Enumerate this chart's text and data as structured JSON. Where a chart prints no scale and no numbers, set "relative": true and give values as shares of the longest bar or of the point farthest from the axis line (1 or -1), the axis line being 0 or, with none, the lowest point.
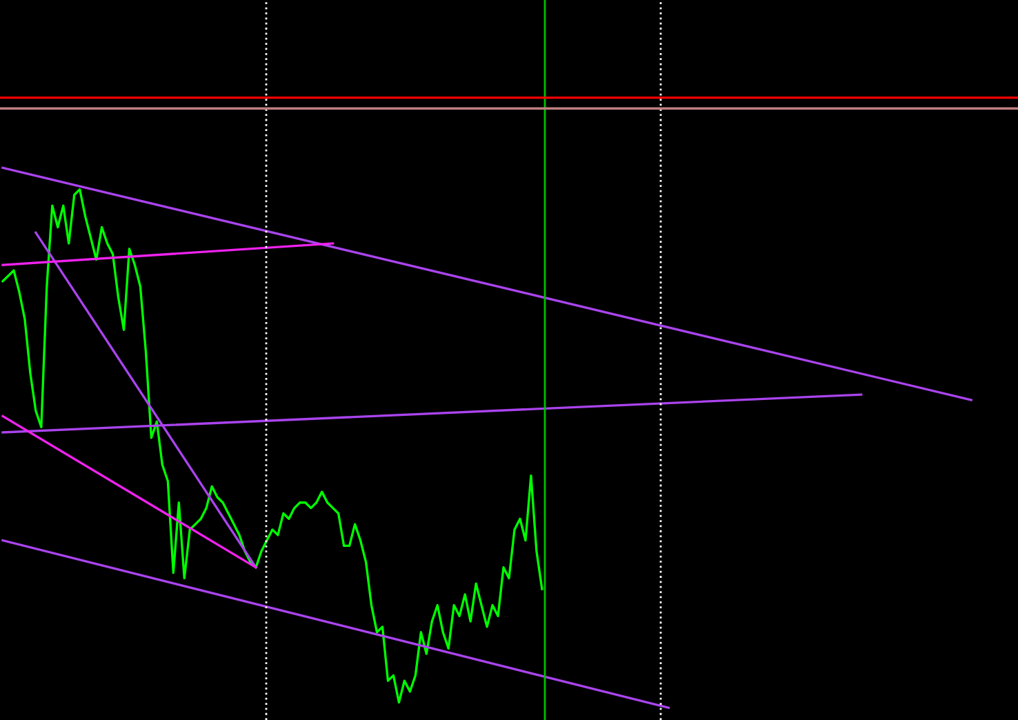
{
  "chart_data": {
    "type": "line",
    "relative": true,
    "marker": "none",
    "line_style": "solid",
    "categories": [
      null,
      null,
      null,
      null,
      null,
      null,
      null,
      null,
      null,
      null,
      null,
      null,
      null,
      null,
      null,
      null,
      null,
      null,
      null,
      null,
      null,
      null,
      null,
      null,
      null,
      null,
      null,
      null,
      null,
      null,
      null,
      null,
      null,
      null,
      null,
      null,
      null,
      null,
      null,
      null,
      null,
      null,
      null,
      null,
      null,
      null,
      null,
      null,
      null,
      null,
      null,
      null,
      null,
      null,
      null,
      null,
      null,
      null,
      null,
      null,
      null,
      null,
      null,
      null,
      null,
      null,
      null,
      null,
      null,
      null,
      null,
      null,
      null,
      null,
      null,
      null,
      null,
      null,
      null,
      null,
      null,
      null,
      null,
      null,
      null,
      null,
      null,
      null,
      null,
      null,
      null,
      null,
      null,
      null,
      null,
      null,
      null,
      null,
      null,
      null,
      null,
      null,
      null,
      null,
      null,
      null,
      null,
      null,
      null,
      null,
      null,
      null,
      null,
      null,
      null,
      null,
      null,
      null,
      null,
      null,
      null,
      null,
      null,
      null,
      null,
      null,
      null,
      null,
      null,
      null,
      null,
      null,
      null,
      null,
      null,
      null,
      null,
      null,
      null,
      null,
      null,
      null,
      null,
      null,
      null,
      null,
      null,
      null,
      null,
      null,
      null,
      null,
      null,
      null,
      null,
      null,
      null,
      null,
      null,
      null,
      null,
      null,
      null,
      null,
      null,
      null,
      null,
      null,
      null,
      null,
      null,
      null,
      null,
      null,
      null,
      null,
      null,
      null,
      null,
      null,
      null,
      null,
      null,
      null,
      null
    ],
    "series": [
      {
        "color": "#00ff00",
        "values": [
          0.79,
          0.8,
          0.81,
          0.77,
          0.72,
          0.62,
          0.55,
          0.52,
          0.78,
          0.93,
          0.89,
          0.93,
          0.86,
          0.95,
          0.96,
          0.91,
          0.87,
          0.83,
          0.89,
          0.86,
          0.84,
          0.76,
          0.7,
          0.85,
          0.82,
          0.78,
          0.66,
          0.5,
          0.53,
          0.45,
          0.42,
          0.25,
          0.38,
          0.24,
          0.33,
          0.34,
          0.35,
          0.37,
          0.41,
          0.39,
          0.38,
          0.36,
          0.34,
          0.32,
          0.29,
          0.27,
          0.26,
          0.29,
          0.31,
          0.33,
          0.32,
          0.36,
          0.35,
          0.37,
          0.38,
          0.38,
          0.37,
          0.38,
          0.4,
          0.38,
          0.37,
          0.36,
          0.3,
          0.3,
          0.34,
          0.31,
          0.27,
          0.19,
          0.14,
          0.15,
          0.05,
          0.06,
          0.01,
          0.05,
          0.03,
          0.06,
          0.14,
          0.1,
          0.16,
          0.19,
          0.14,
          0.11,
          0.19,
          0.17,
          0.21,
          0.16,
          0.23,
          0.19,
          0.15,
          0.19,
          0.17,
          0.26,
          0.24,
          0.33,
          0.35,
          0.31,
          0.43,
          0.29,
          0.22,
          null,
          null,
          null,
          null,
          null,
          null,
          null,
          null,
          null,
          null,
          null,
          null,
          null,
          null,
          null,
          null,
          null,
          null,
          null,
          null,
          null,
          null,
          null,
          null,
          null,
          null,
          null,
          null,
          null,
          null,
          null,
          null,
          null,
          null,
          null,
          null,
          null,
          null,
          null,
          null,
          null,
          null,
          null,
          null,
          null,
          null,
          null,
          null,
          null,
          null,
          null,
          null,
          null,
          null,
          null,
          null,
          null,
          null,
          null,
          null,
          null,
          null,
          null,
          null,
          null,
          null,
          null,
          null,
          null,
          null,
          null,
          null,
          null,
          null,
          null,
          null,
          null,
          null,
          null,
          null,
          null,
          null,
          null,
          null,
          null,
          null
        ]
      },
      {
        "color": "#aa44ee",
        "values": [
          1.0,
          null,
          null,
          null,
          null,
          null,
          null,
          null,
          null,
          null,
          null,
          null,
          null,
          null,
          null,
          null,
          null,
          null,
          null,
          null,
          null,
          null,
          null,
          null,
          null,
          null,
          null,
          null,
          null,
          null,
          null,
          null,
          null,
          null,
          null,
          null,
          null,
          null,
          null,
          null,
          null,
          null,
          null,
          null,
          null,
          null,
          null,
          null,
          null,
          null,
          null,
          null,
          null,
          null,
          null,
          null,
          null,
          null,
          null,
          null,
          null,
          null,
          null,
          null,
          null,
          null,
          null,
          null,
          null,
          null,
          null,
          null,
          null,
          null,
          null,
          null,
          null,
          null,
          null,
          null,
          null,
          null,
          null,
          null,
          null,
          null,
          null,
          null,
          null,
          null,
          null,
          null,
          null,
          null,
          null,
          null,
          null,
          null,
          null,
          null,
          null,
          null,
          null,
          null,
          null,
          null,
          null,
          null,
          null,
          null,
          null,
          null,
          null,
          null,
          null,
          null,
          null,
          null,
          null,
          null,
          null,
          null,
          null,
          null,
          null,
          null,
          null,
          null,
          null,
          null,
          null,
          null,
          null,
          null,
          null,
          null,
          null,
          null,
          null,
          null,
          null,
          null,
          null,
          null,
          null,
          null,
          null,
          null,
          null,
          null,
          null,
          null,
          null,
          null,
          null,
          null,
          null,
          null,
          null,
          null,
          null,
          null,
          null,
          null,
          null,
          null,
          null,
          null,
          null,
          null,
          null,
          null,
          null,
          null,
          null,
          null,
          0.57,
          null,
          null,
          null,
          null,
          null,
          null,
          null,
          null
        ]
      },
      {
        "color": "#aa44ee",
        "values": [
          0.31,
          null,
          null,
          null,
          null,
          null,
          null,
          null,
          null,
          null,
          null,
          null,
          null,
          null,
          null,
          null,
          null,
          null,
          null,
          null,
          null,
          null,
          null,
          null,
          null,
          null,
          null,
          null,
          null,
          null,
          null,
          null,
          null,
          null,
          null,
          null,
          null,
          null,
          null,
          null,
          null,
          null,
          null,
          null,
          null,
          null,
          null,
          null,
          null,
          null,
          null,
          null,
          null,
          null,
          null,
          null,
          null,
          null,
          null,
          null,
          null,
          null,
          null,
          null,
          null,
          null,
          null,
          null,
          null,
          null,
          null,
          null,
          null,
          null,
          null,
          null,
          null,
          null,
          null,
          null,
          null,
          null,
          null,
          null,
          null,
          null,
          null,
          null,
          null,
          null,
          null,
          null,
          null,
          null,
          null,
          null,
          null,
          null,
          null,
          null,
          null,
          null,
          null,
          null,
          null,
          null,
          null,
          null,
          null,
          null,
          null,
          null,
          null,
          null,
          null,
          null,
          null,
          null,
          null,
          null,
          null,
          0,
          null,
          null,
          null,
          null,
          null,
          null,
          null,
          null,
          null,
          null,
          null,
          null,
          null,
          null,
          null,
          null,
          null,
          null,
          null,
          null,
          null,
          null,
          null,
          null,
          null,
          null,
          null,
          null,
          null,
          null,
          null,
          null,
          null,
          null,
          null,
          null,
          null,
          null,
          null,
          null,
          null,
          null,
          null,
          null,
          null,
          null,
          null,
          null,
          null,
          null,
          null,
          null,
          null,
          null,
          null,
          null,
          null,
          null,
          null,
          null,
          null,
          null,
          null
        ]
      },
      {
        "color": "#aa44ee",
        "values": [
          0.51,
          null,
          null,
          null,
          null,
          null,
          null,
          null,
          null,
          null,
          null,
          null,
          null,
          null,
          null,
          null,
          null,
          null,
          null,
          null,
          null,
          null,
          null,
          null,
          null,
          null,
          null,
          null,
          null,
          null,
          null,
          null,
          null,
          null,
          null,
          null,
          null,
          null,
          null,
          null,
          null,
          null,
          null,
          null,
          null,
          null,
          null,
          null,
          null,
          null,
          null,
          null,
          null,
          null,
          null,
          null,
          null,
          null,
          null,
          null,
          null,
          null,
          null,
          null,
          null,
          null,
          null,
          null,
          null,
          null,
          null,
          null,
          null,
          null,
          null,
          null,
          null,
          null,
          null,
          null,
          null,
          null,
          null,
          null,
          null,
          null,
          null,
          null,
          null,
          null,
          null,
          null,
          null,
          null,
          null,
          null,
          null,
          null,
          null,
          null,
          null,
          null,
          null,
          null,
          null,
          null,
          null,
          null,
          null,
          null,
          null,
          null,
          null,
          null,
          null,
          null,
          null,
          null,
          null,
          null,
          null,
          null,
          null,
          null,
          null,
          null,
          null,
          null,
          null,
          null,
          null,
          null,
          null,
          null,
          null,
          null,
          null,
          null,
          null,
          null,
          null,
          null,
          null,
          null,
          null,
          null,
          null,
          null,
          null,
          null,
          null,
          null,
          null,
          null,
          null,
          null,
          0.58,
          null,
          null,
          null,
          null,
          null,
          null,
          null,
          null,
          null,
          null,
          null,
          null,
          null,
          null,
          null,
          null,
          null,
          null,
          null,
          null,
          null,
          null,
          null,
          null,
          null,
          null,
          null,
          null
        ]
      },
      {
        "color": "#aa44ee",
        "values": [
          null,
          null,
          null,
          null,
          null,
          null,
          0.88,
          null,
          null,
          null,
          null,
          null,
          null,
          null,
          null,
          null,
          null,
          null,
          null,
          null,
          null,
          null,
          null,
          null,
          null,
          null,
          null,
          null,
          null,
          null,
          null,
          null,
          null,
          null,
          null,
          null,
          null,
          null,
          null,
          null,
          null,
          null,
          null,
          null,
          null,
          null,
          0.26,
          null,
          null,
          null,
          null,
          null,
          null,
          null,
          null,
          null,
          null,
          null,
          null,
          null,
          null,
          null,
          null,
          null,
          null,
          null,
          null,
          null,
          null,
          null,
          null,
          null,
          null,
          null,
          null,
          null,
          null,
          null,
          null,
          null,
          null,
          null,
          null,
          null,
          null,
          null,
          null,
          null,
          null,
          null,
          null,
          null,
          null,
          null,
          null,
          null,
          null,
          null,
          null,
          null,
          null,
          null,
          null,
          null,
          null,
          null,
          null,
          null,
          null,
          null,
          null,
          null,
          null,
          null,
          null,
          null,
          null,
          null,
          null,
          null,
          null,
          null,
          null,
          null,
          null,
          null,
          null,
          null,
          null,
          null,
          null,
          null,
          null,
          null,
          null,
          null,
          null,
          null,
          null,
          null,
          null,
          null,
          null,
          null,
          null,
          null,
          null,
          null,
          null,
          null,
          null,
          null,
          null,
          null,
          null,
          null,
          null,
          null,
          null,
          null,
          null,
          null,
          null,
          null,
          null,
          null,
          null,
          null,
          null,
          null,
          null,
          null,
          null,
          null,
          null,
          null,
          null,
          null,
          null,
          null,
          null,
          null,
          null,
          null,
          null
        ]
      },
      {
        "color": "#ee22ee",
        "values": [
          0.82,
          null,
          null,
          null,
          null,
          null,
          null,
          null,
          null,
          null,
          null,
          null,
          null,
          null,
          null,
          null,
          null,
          null,
          null,
          null,
          null,
          null,
          null,
          null,
          null,
          null,
          null,
          null,
          null,
          null,
          null,
          null,
          null,
          null,
          null,
          null,
          null,
          null,
          null,
          null,
          null,
          null,
          null,
          null,
          null,
          null,
          null,
          null,
          null,
          null,
          null,
          null,
          null,
          null,
          null,
          null,
          null,
          null,
          null,
          null,
          0.86,
          null,
          null,
          null,
          null,
          null,
          null,
          null,
          null,
          null,
          null,
          null,
          null,
          null,
          null,
          null,
          null,
          null,
          null,
          null,
          null,
          null,
          null,
          null,
          null,
          null,
          null,
          null,
          null,
          null,
          null,
          null,
          null,
          null,
          null,
          null,
          null,
          null,
          null,
          null,
          null,
          null,
          null,
          null,
          null,
          null,
          null,
          null,
          null,
          null,
          null,
          null,
          null,
          null,
          null,
          null,
          null,
          null,
          null,
          null,
          null,
          null,
          null,
          null,
          null,
          null,
          null,
          null,
          null,
          null,
          null,
          null,
          null,
          null,
          null,
          null,
          null,
          null,
          null,
          null,
          null,
          null,
          null,
          null,
          null,
          null,
          null,
          null,
          null,
          null,
          null,
          null,
          null,
          null,
          null,
          null,
          null,
          null,
          null,
          null,
          null,
          null,
          null,
          null,
          null,
          null,
          null,
          null,
          null,
          null,
          null,
          null,
          null,
          null,
          null,
          null,
          null,
          null,
          null,
          null,
          null,
          null,
          null,
          null,
          null
        ]
      },
      {
        "color": "#ee22ee",
        "values": [
          0.54,
          null,
          null,
          null,
          null,
          null,
          null,
          null,
          null,
          null,
          null,
          null,
          null,
          null,
          null,
          null,
          null,
          null,
          null,
          null,
          null,
          null,
          null,
          null,
          null,
          null,
          null,
          null,
          null,
          null,
          null,
          null,
          null,
          null,
          null,
          null,
          null,
          null,
          null,
          null,
          null,
          null,
          null,
          null,
          null,
          null,
          0.26,
          null,
          null,
          null,
          null,
          null,
          null,
          null,
          null,
          null,
          null,
          null,
          null,
          null,
          null,
          null,
          null,
          null,
          null,
          null,
          null,
          null,
          null,
          null,
          null,
          null,
          null,
          null,
          null,
          null,
          null,
          null,
          null,
          null,
          null,
          null,
          null,
          null,
          null,
          null,
          null,
          null,
          null,
          null,
          null,
          null,
          null,
          null,
          null,
          null,
          null,
          null,
          null,
          null,
          null,
          null,
          null,
          null,
          null,
          null,
          null,
          null,
          null,
          null,
          null,
          null,
          null,
          null,
          null,
          null,
          null,
          null,
          null,
          null,
          null,
          null,
          null,
          null,
          null,
          null,
          null,
          null,
          null,
          null,
          null,
          null,
          null,
          null,
          null,
          null,
          null,
          null,
          null,
          null,
          null,
          null,
          null,
          null,
          null,
          null,
          null,
          null,
          null,
          null,
          null,
          null,
          null,
          null,
          null,
          null,
          null,
          null,
          null,
          null,
          null,
          null,
          null,
          null,
          null,
          null,
          null,
          null,
          null,
          null,
          null,
          null,
          null,
          null,
          null,
          null,
          null,
          null,
          null,
          null,
          null,
          null,
          null,
          null,
          null
        ]
      }
    ],
    "ref_lines": [
      {
        "axis": "y",
        "value": 1.13,
        "color": "#ff0000",
        "line_style": "solid"
      },
      {
        "axis": "y",
        "value": 1.11,
        "color": "#c08080",
        "line_style": "solid"
      }
    ]
  }
}
